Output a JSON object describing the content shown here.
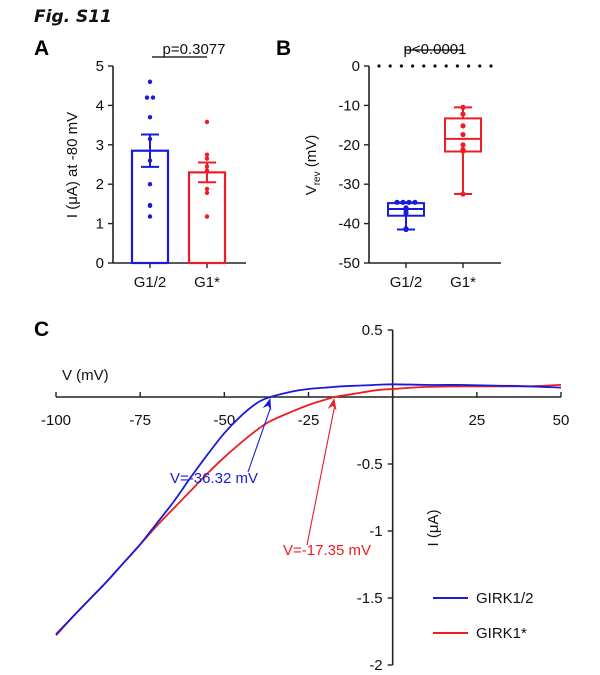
{
  "figure": {
    "title": "Fig. S11"
  },
  "chart_data": [
    {
      "panel": "A",
      "type": "bar",
      "title": "p=0.3077",
      "xlabel": "",
      "ylabel": "I (μA) at -80 mV",
      "ylim": [
        0,
        5
      ],
      "yticks": [
        "0",
        "1",
        "2",
        "3",
        "4",
        "5"
      ],
      "categories": [
        "G1/2",
        "G1*"
      ],
      "colors": [
        "#1a1adb",
        "#ee1c24"
      ],
      "series": [
        {
          "name": "mean",
          "values": [
            2.85,
            2.3
          ]
        },
        {
          "name": "sem",
          "values": [
            0.41,
            0.25
          ]
        }
      ],
      "points": [
        [
          4.6,
          4.2,
          4.2,
          3.7,
          3.15,
          2.6,
          2.0,
          1.47,
          1.45,
          1.18
        ],
        [
          3.58,
          2.75,
          2.65,
          2.45,
          2.35,
          1.88,
          1.78,
          1.18
        ]
      ],
      "annotation": {
        "text": "p=0.3077",
        "comparison": [
          "G1/2",
          "G1*"
        ]
      }
    },
    {
      "panel": "B",
      "type": "box",
      "title": "p<0.0001",
      "xlabel": "",
      "ylabel": "V",
      "ylabel_sub": "rev",
      "ylabel_unit": " (mV)",
      "ylim": [
        -50,
        0
      ],
      "yticks": [
        "0",
        "-10",
        "-20",
        "-30",
        "-40",
        "-50"
      ],
      "reference_line": 0,
      "categories": [
        "G1/2",
        "G1*"
      ],
      "colors": [
        "#1a1adb",
        "#ee1c24"
      ],
      "boxes": [
        {
          "min": -41.5,
          "q1": -38.0,
          "median": -36.3,
          "q3": -34.8,
          "max": -34.6
        },
        {
          "min": -32.5,
          "q1": -21.7,
          "median": -18.5,
          "q3": -13.3,
          "max": -10.5
        }
      ],
      "points": [
        [
          -34.6,
          -34.6,
          -34.6,
          -34.6,
          -36.0,
          -36.3,
          -36.5,
          -37.3,
          -41.3,
          -41.5
        ],
        [
          -10.5,
          -12.2,
          -15.2,
          -17.4,
          -20.0,
          -21.2,
          -21.6,
          -32.5
        ]
      ],
      "annotation": {
        "text": "p<0.0001",
        "comparison": [
          "G1/2",
          "G1*"
        ]
      }
    },
    {
      "panel": "C",
      "type": "line",
      "title": "",
      "xlabel": "V (mV)",
      "ylabel": "I (μA)",
      "xlim": [
        -100,
        50
      ],
      "ylim": [
        -2,
        0.5
      ],
      "xticks": [
        "-100",
        "-75",
        "-50",
        "-25",
        "0",
        "25",
        "50"
      ],
      "yticks": [
        "0.5",
        "-0.5",
        "-1",
        "-1.5",
        "-2"
      ],
      "legend_position": "bottom-right",
      "x": [
        -100,
        -95,
        -90,
        -85,
        -80,
        -75,
        -70,
        -65,
        -60,
        -55,
        -50,
        -45,
        -40,
        -36.32,
        -30,
        -25,
        -20,
        -17.35,
        -15,
        -10,
        -5,
        0,
        10,
        20,
        30,
        40,
        50
      ],
      "series": [
        {
          "name": "GIRK1/2",
          "color": "#1a1adb",
          "values": [
            -1.77,
            -1.64,
            -1.51,
            -1.38,
            -1.24,
            -1.1,
            -0.94,
            -0.78,
            -0.6,
            -0.43,
            -0.27,
            -0.14,
            -0.04,
            0.0,
            0.04,
            0.06,
            0.07,
            0.075,
            0.08,
            0.085,
            0.09,
            0.095,
            0.09,
            0.09,
            0.085,
            0.08,
            0.07
          ]
        },
        {
          "name": "GIRK1*",
          "color": "#ee1c24",
          "values": [
            -1.78,
            -1.64,
            -1.51,
            -1.38,
            -1.24,
            -1.1,
            -0.96,
            -0.83,
            -0.7,
            -0.57,
            -0.45,
            -0.34,
            -0.24,
            -0.18,
            -0.11,
            -0.06,
            -0.02,
            0.0,
            0.01,
            0.03,
            0.05,
            0.06,
            0.075,
            0.08,
            0.08,
            0.08,
            0.09
          ]
        }
      ],
      "annotations": [
        {
          "text": "V=-36.32 mV",
          "x": -36.32,
          "color": "#1a1adb"
        },
        {
          "text": "V=-17.35 mV",
          "x": -17.35,
          "color": "#ee1c24"
        }
      ]
    }
  ]
}
